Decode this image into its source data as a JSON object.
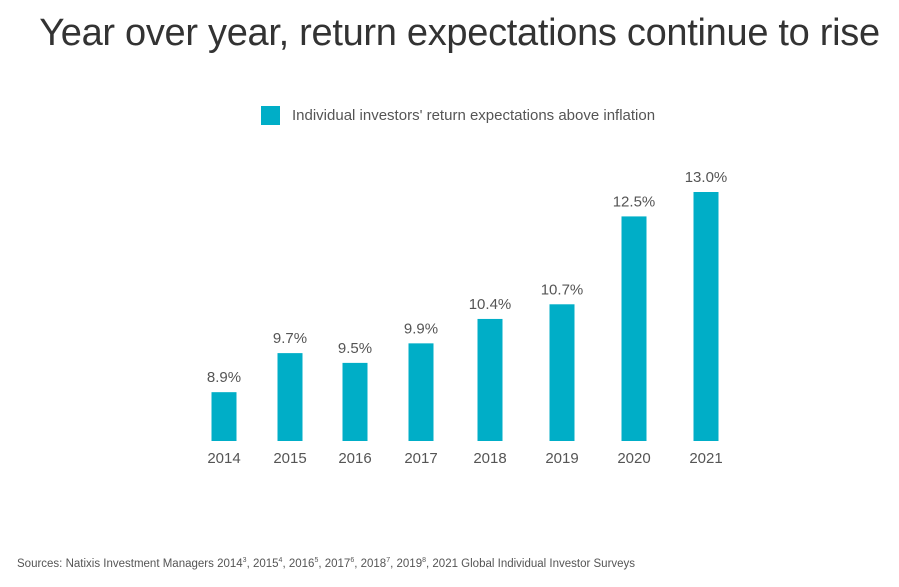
{
  "chart_data": {
    "type": "bar",
    "title": "Year over year, return expectations continue to rise",
    "categories": [
      "2014",
      "2015",
      "2016",
      "2017",
      "2018",
      "2019",
      "2020",
      "2021"
    ],
    "series": [
      {
        "name": "Individual investors' return expectations above inflation",
        "values": [
          8.9,
          9.7,
          9.5,
          9.9,
          10.4,
          10.7,
          12.5,
          13.0
        ],
        "color": "#00AEC7"
      }
    ],
    "data_labels": [
      "8.9%",
      "9.7%",
      "9.5%",
      "9.9%",
      "10.4%",
      "10.7%",
      "12.5%",
      "13.0%"
    ],
    "ylim": [
      7.9,
      13.0
    ],
    "grid": false,
    "legend": "top-center",
    "xlabel": "",
    "ylabel": ""
  },
  "sources": {
    "prefix": "Sources: Natixis Investment Managers ",
    "items": [
      {
        "year": "2014",
        "sup": "3"
      },
      {
        "year": "2015",
        "sup": "4"
      },
      {
        "year": "2016",
        "sup": "5"
      },
      {
        "year": "2017",
        "sup": "6"
      },
      {
        "year": "2018",
        "sup": "7"
      },
      {
        "year": "2019",
        "sup": "8"
      }
    ],
    "suffix": "2021 Global Individual Investor Surveys"
  }
}
